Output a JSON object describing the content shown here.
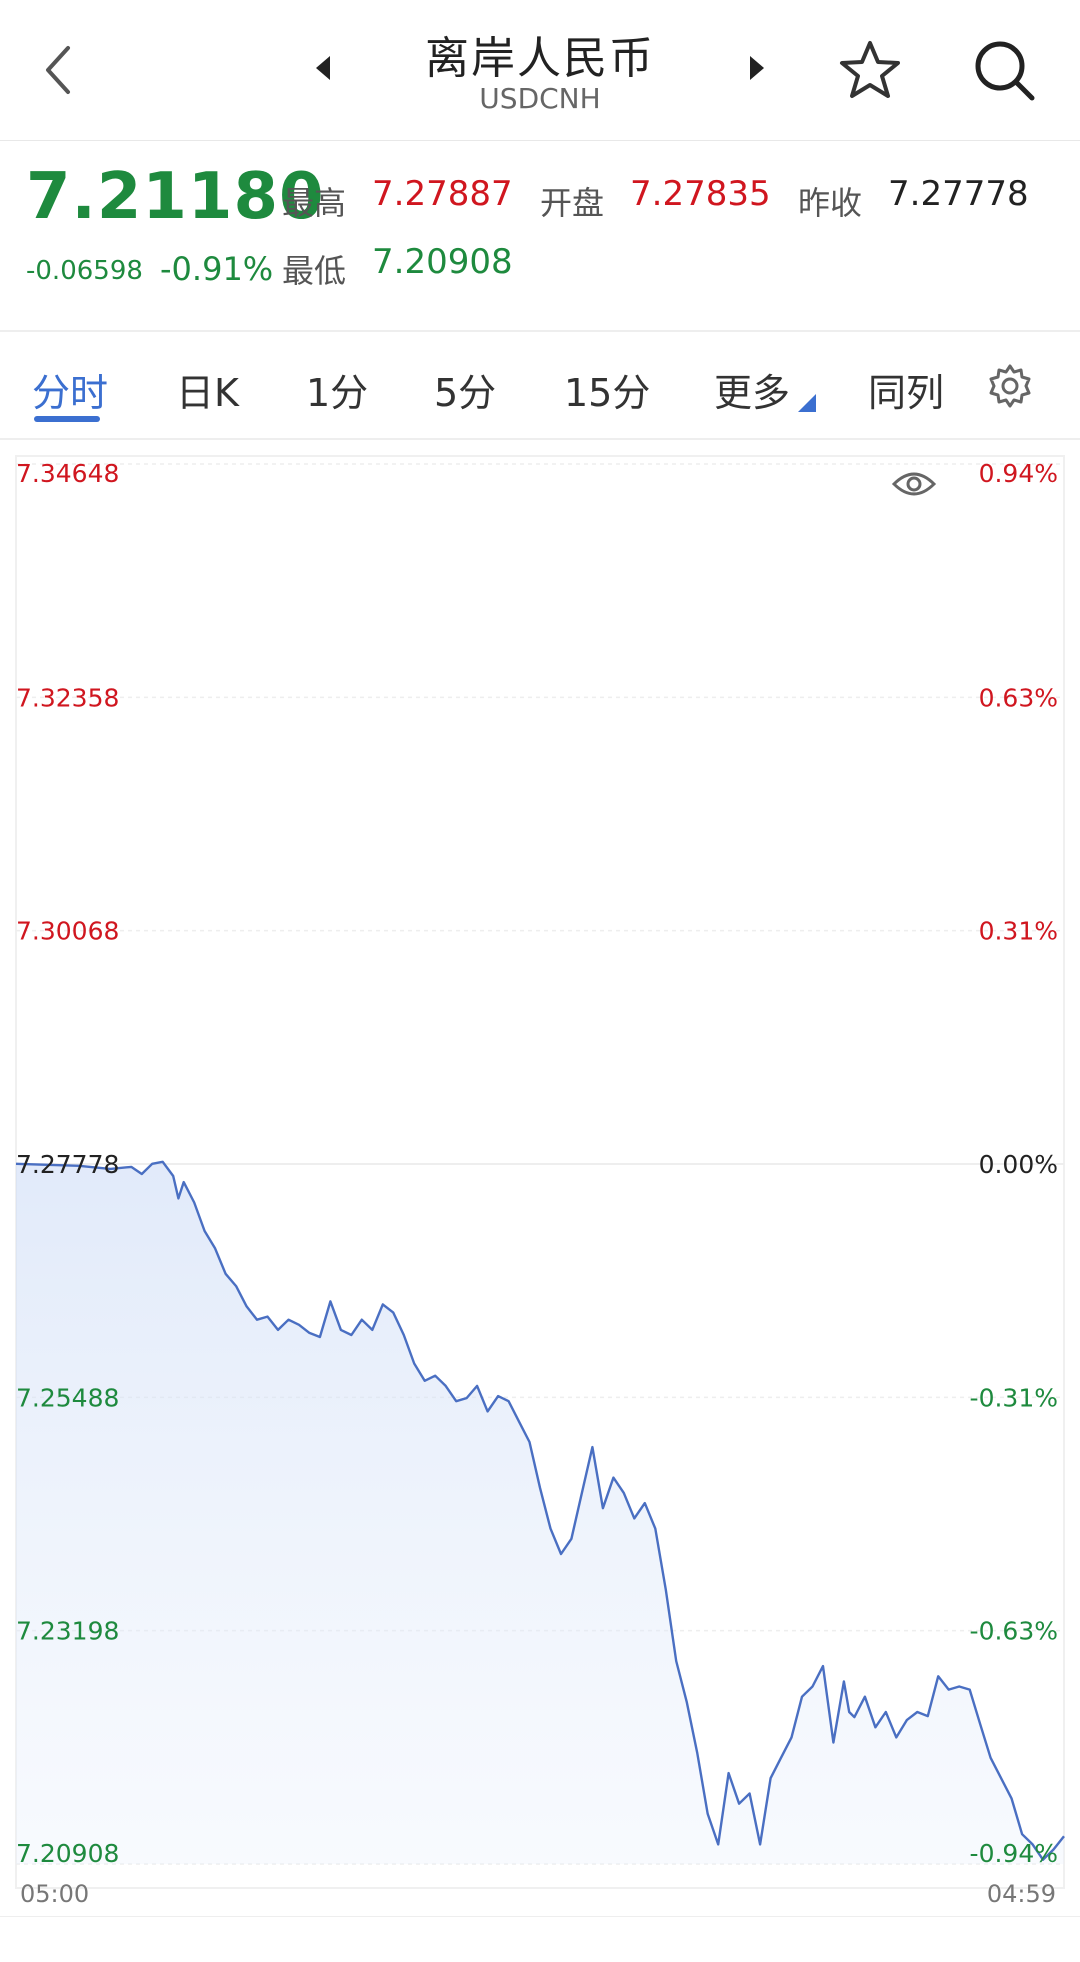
{
  "header": {
    "title": "离岸人民币",
    "subtitle": "USDCNH"
  },
  "quote": {
    "price": "7.21180",
    "change": "-0.06598",
    "change_pct": "-0.91%",
    "high_label": "最高",
    "high": "7.27887",
    "open_label": "开盘",
    "open": "7.27835",
    "prev_close_label": "昨收",
    "prev_close": "7.27778",
    "low_label": "最低",
    "low": "7.20908"
  },
  "tabs": [
    {
      "label": "分时",
      "active": true
    },
    {
      "label": "日K"
    },
    {
      "label": "1分"
    },
    {
      "label": "5分"
    },
    {
      "label": "15分"
    },
    {
      "label": "更多"
    },
    {
      "label": "同列"
    }
  ],
  "colors": {
    "up": "#d0161f",
    "down": "#1e8a3e",
    "line": "#4a6fc2",
    "accent": "#3b6fd0"
  },
  "chart_data": {
    "type": "line",
    "x_start_label": "05:00",
    "x_end_label": "04:59",
    "y_left_ticks": [
      "7.34648",
      "7.32358",
      "7.30068",
      "7.27778",
      "7.25488",
      "7.23198",
      "7.20908"
    ],
    "y_right_ticks": [
      "0.94%",
      "0.63%",
      "0.31%",
      "0.00%",
      "-0.31%",
      "-0.63%",
      "-0.94%"
    ],
    "ylim": [
      7.20908,
      7.34648
    ],
    "prev_close": 7.27778,
    "x": [
      0,
      3,
      6,
      9,
      11,
      12,
      13,
      14,
      15,
      15.5,
      16,
      17,
      18,
      19,
      20,
      21,
      22,
      23,
      24,
      25,
      26,
      27,
      28,
      29,
      30,
      31,
      32,
      33,
      34,
      35,
      36,
      37,
      38,
      39,
      40,
      41,
      42,
      43,
      44,
      45,
      46,
      47,
      48,
      49,
      50,
      51,
      52,
      53,
      54,
      55,
      56,
      57,
      58,
      59,
      60,
      61,
      62,
      63,
      64,
      65,
      66,
      67,
      68,
      69,
      70,
      71,
      72,
      73,
      74,
      75,
      76,
      77,
      78,
      79,
      79.5,
      80,
      81,
      82,
      83,
      84,
      85,
      86,
      87,
      88,
      89,
      90,
      91,
      92,
      93,
      94,
      95,
      96,
      97,
      98,
      99,
      100
    ],
    "y": [
      7.2778,
      7.2777,
      7.2776,
      7.2773,
      7.2775,
      7.2768,
      7.2778,
      7.278,
      7.2766,
      7.2744,
      7.276,
      7.274,
      7.2712,
      7.2695,
      7.267,
      7.2658,
      7.2638,
      7.2625,
      7.2628,
      7.2615,
      7.2625,
      7.262,
      7.2612,
      7.2608,
      7.2643,
      7.2615,
      7.261,
      7.2625,
      7.2615,
      7.264,
      7.2632,
      7.261,
      7.2582,
      7.2565,
      7.257,
      7.256,
      7.2545,
      7.2548,
      7.256,
      7.2535,
      7.255,
      7.2545,
      7.2525,
      7.2505,
      7.246,
      7.242,
      7.2395,
      7.241,
      7.2455,
      7.25,
      7.244,
      7.247,
      7.2455,
      7.243,
      7.2445,
      7.242,
      7.236,
      7.229,
      7.225,
      7.22,
      7.214,
      7.211,
      7.218,
      7.215,
      7.216,
      7.211,
      7.2175,
      7.2195,
      7.2215,
      7.2255,
      7.2265,
      7.2285,
      7.221,
      7.227,
      7.224,
      7.2235,
      7.2255,
      7.2225,
      7.224,
      7.2215,
      7.2232,
      7.224,
      7.2236,
      7.2275,
      7.2262,
      7.2265,
      7.2262,
      7.2228,
      7.2195,
      7.2175,
      7.2155,
      7.212,
      7.211,
      7.2095,
      7.2105,
      7.2118
    ]
  }
}
